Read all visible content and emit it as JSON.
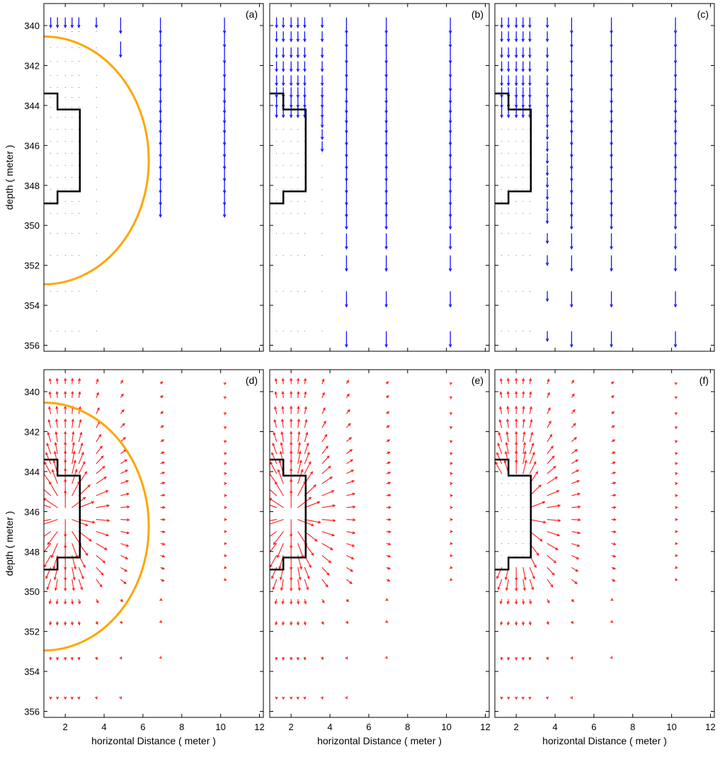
{
  "figure": {
    "colors": {
      "vertical_arrows": "#1414ff",
      "field_arrows": "#ff1a1a",
      "circle": "#ffa500",
      "boundary": "#000000",
      "axes": "#000000",
      "background": "#ffffff"
    },
    "panels": [
      {
        "label": "(a)",
        "row": 0,
        "col": 0,
        "ylabel": "depth ( meter )",
        "xlabel": "",
        "show_yticks": true,
        "show_xticks": false,
        "arrows": "vertical",
        "circle": true,
        "boundary": "wide"
      },
      {
        "label": "(b)",
        "row": 0,
        "col": 1,
        "ylabel": "",
        "xlabel": "",
        "show_yticks": false,
        "show_xticks": false,
        "arrows": "vertical",
        "circle": false,
        "boundary": "wide"
      },
      {
        "label": "(c)",
        "row": 0,
        "col": 2,
        "ylabel": "",
        "xlabel": "",
        "show_yticks": false,
        "show_xticks": false,
        "arrows": "vertical",
        "circle": false,
        "boundary": "wide"
      },
      {
        "label": "(d)",
        "row": 1,
        "col": 0,
        "ylabel": "depth ( meter )",
        "xlabel": "horizontal Distance ( meter )",
        "show_yticks": true,
        "show_xticks": true,
        "arrows": "field",
        "circle": true,
        "boundary": "wide"
      },
      {
        "label": "(e)",
        "row": 1,
        "col": 1,
        "ylabel": "",
        "xlabel": "horizontal Distance ( meter )",
        "show_yticks": false,
        "show_xticks": true,
        "arrows": "field",
        "circle": false,
        "boundary": "wide"
      },
      {
        "label": "(f)",
        "row": 1,
        "col": 2,
        "ylabel": "",
        "xlabel": "horizontal Distance ( meter )",
        "show_yticks": false,
        "show_xticks": true,
        "arrows": "field",
        "circle": false,
        "boundary": "narrow"
      }
    ]
  },
  "chart_data": {
    "type": "scatter",
    "subtype": "quiver",
    "title": "",
    "xlabel": "horizontal Distance ( meter )",
    "ylabel": "depth ( meter )",
    "xlim": [
      0.9,
      12.2
    ],
    "ylim": [
      356.3,
      338.9
    ],
    "y_inverted": true,
    "xticks": [
      2,
      4,
      6,
      8,
      10,
      12
    ],
    "yticks": [
      340,
      342,
      344,
      346,
      348,
      350,
      352,
      354,
      356
    ],
    "grid": false,
    "legend": "none",
    "arrow_columns_x": [
      1.25,
      1.6,
      2.0,
      2.35,
      2.7,
      3.6,
      4.85,
      6.9,
      10.2
    ],
    "arrow_rows_y": [
      339.6,
      340.3,
      341.1,
      341.8,
      342.5,
      343.1,
      343.6,
      344.1,
      344.6,
      345.2,
      345.8,
      346.4,
      347.0,
      347.6,
      348.2,
      348.8,
      349.4,
      350.4,
      351.5,
      353.3,
      355.3
    ],
    "boundary_wide": [
      [
        0.9,
        343.4
      ],
      [
        1.6,
        343.4
      ],
      [
        1.6,
        344.2
      ],
      [
        2.75,
        344.2
      ],
      [
        2.75,
        348.3
      ],
      [
        1.6,
        348.3
      ],
      [
        1.6,
        348.9
      ],
      [
        0.9,
        348.9
      ]
    ],
    "boundary_narrow": [
      [
        0.9,
        343.4
      ],
      [
        1.6,
        343.4
      ],
      [
        1.6,
        344.2
      ],
      [
        2.75,
        344.2
      ],
      [
        2.75,
        348.3
      ],
      [
        1.6,
        348.3
      ],
      [
        1.6,
        348.9
      ],
      [
        0.9,
        348.9
      ]
    ],
    "circle": {
      "center_x": 0.9,
      "center_y": 346.75,
      "radius_x": 5.4,
      "radius_y": 6.2
    },
    "panels": [
      "(a)",
      "(b)",
      "(c)",
      "(d)",
      "(e)",
      "(f)"
    ]
  }
}
